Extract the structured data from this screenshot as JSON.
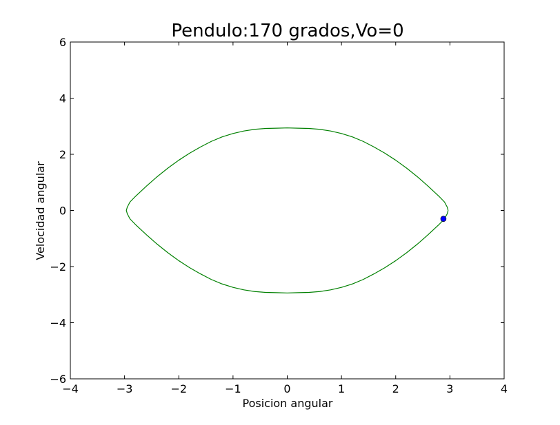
{
  "chart_data": {
    "type": "line",
    "title": "Pendulo:170 grados,Vo=0",
    "xlabel": "Posicion angular",
    "ylabel": "Velocidad angular",
    "xlim": [
      -4,
      4
    ],
    "ylim": [
      -6,
      6
    ],
    "xticks": [
      -4,
      -3,
      -2,
      -1,
      0,
      1,
      2,
      3,
      4
    ],
    "yticks": [
      -6,
      -4,
      -2,
      0,
      2,
      4,
      6
    ],
    "xtick_labels": [
      "−4",
      "−3",
      "−2",
      "−1",
      "0",
      "1",
      "2",
      "3",
      "4"
    ],
    "ytick_labels": [
      "−6",
      "−4",
      "−2",
      "0",
      "2",
      "4",
      "6"
    ],
    "grid": false,
    "series": [
      {
        "kind": "line",
        "color": "#008000",
        "x": [
          2.967,
          2.95,
          2.9,
          2.8,
          2.6,
          2.4,
          2.2,
          2.0,
          1.8,
          1.6,
          1.4,
          1.2,
          1.0,
          0.8,
          0.6,
          0.4,
          0.2,
          0.0,
          -0.2,
          -0.4,
          -0.6,
          -0.8,
          -1.0,
          -1.2,
          -1.4,
          -1.6,
          -1.8,
          -2.0,
          -2.2,
          -2.4,
          -2.6,
          -2.8,
          -2.9,
          -2.95,
          -2.967,
          -2.95,
          -2.9,
          -2.8,
          -2.6,
          -2.4,
          -2.2,
          -2.0,
          -1.8,
          -1.6,
          -1.4,
          -1.2,
          -1.0,
          -0.8,
          -0.6,
          -0.4,
          -0.2,
          0.0,
          0.2,
          0.4,
          0.6,
          0.8,
          1.0,
          1.2,
          1.4,
          1.6,
          1.8,
          2.0,
          2.2,
          2.4,
          2.6,
          2.8,
          2.9,
          2.95,
          2.967
        ],
        "y": [
          0.0,
          0.12,
          0.3,
          0.5,
          0.86,
          1.2,
          1.51,
          1.79,
          2.04,
          2.26,
          2.46,
          2.62,
          2.74,
          2.83,
          2.89,
          2.92,
          2.93,
          2.94,
          2.93,
          2.92,
          2.89,
          2.83,
          2.74,
          2.62,
          2.46,
          2.26,
          2.04,
          1.79,
          1.51,
          1.2,
          0.86,
          0.5,
          0.3,
          0.12,
          0.0,
          -0.12,
          -0.3,
          -0.5,
          -0.86,
          -1.2,
          -1.51,
          -1.79,
          -2.04,
          -2.26,
          -2.46,
          -2.62,
          -2.74,
          -2.83,
          -2.89,
          -2.92,
          -2.93,
          -2.94,
          -2.93,
          -2.92,
          -2.89,
          -2.83,
          -2.74,
          -2.62,
          -2.46,
          -2.26,
          -2.04,
          -1.79,
          -1.51,
          -1.2,
          -0.86,
          -0.5,
          -0.3,
          -0.12,
          0.0
        ]
      },
      {
        "kind": "point",
        "color": "#0000ff",
        "x": [
          2.88
        ],
        "y": [
          -0.3
        ]
      }
    ]
  }
}
